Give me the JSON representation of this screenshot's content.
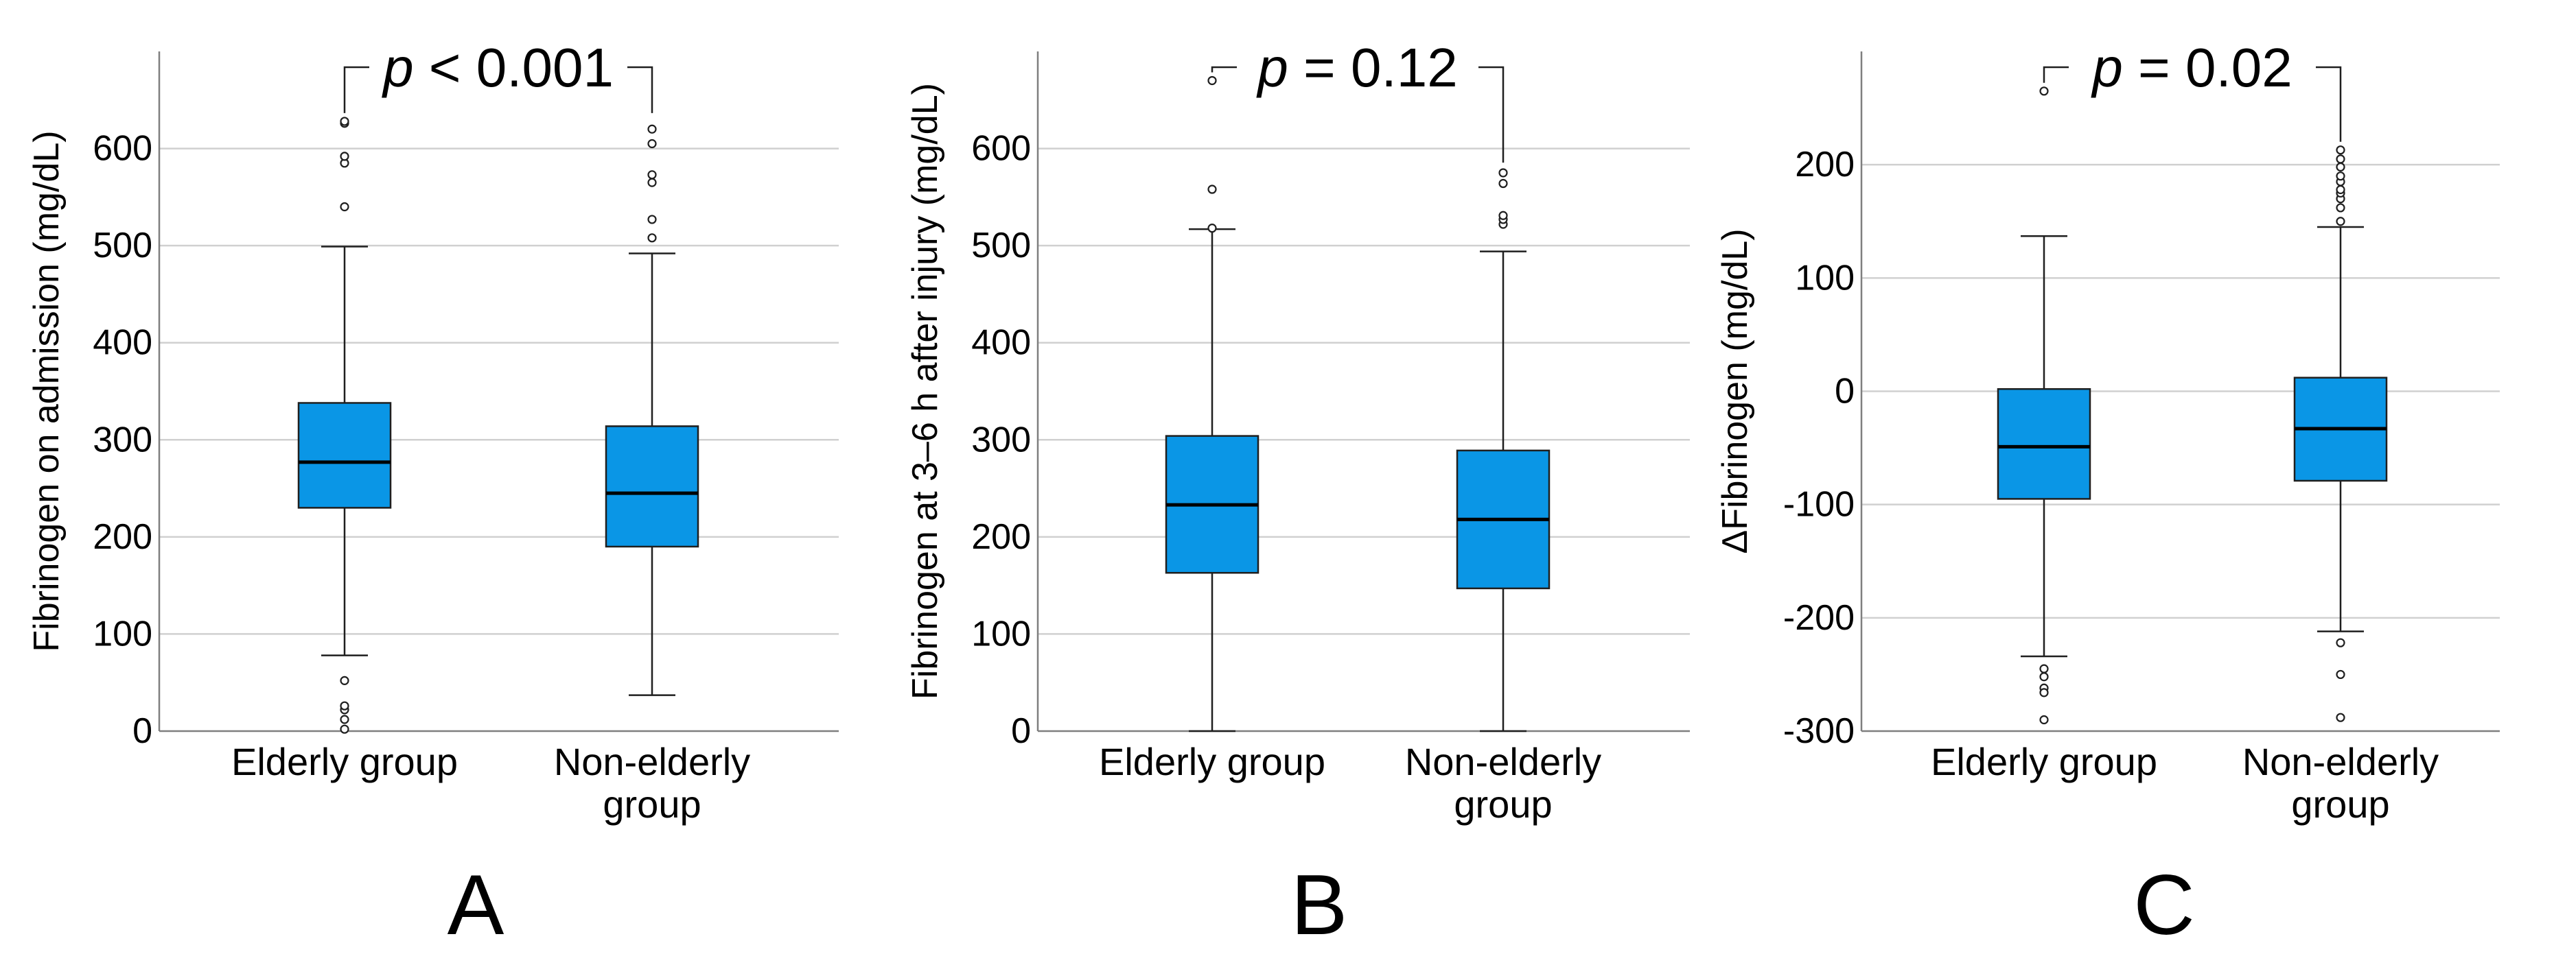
{
  "colors": {
    "box_fill": "#0a96e6",
    "grid": "#d0d0d0",
    "axis": "#7f7f7f",
    "text": "#000000"
  },
  "chart_data": [
    {
      "type": "box",
      "panel_label": "A",
      "ylabel": "Fibrinogen on admission (mg/dL)",
      "xlabel": "",
      "categories": [
        "Elderly group",
        "Non-elderly group"
      ],
      "category_display": [
        [
          "Elderly group"
        ],
        [
          "Non-elderly",
          "group"
        ]
      ],
      "ylim": [
        0,
        700
      ],
      "yticks": [
        0,
        100,
        200,
        300,
        400,
        500,
        600
      ],
      "ytick_labels": [
        "0",
        "100",
        "200",
        "300",
        "400",
        "500",
        "600"
      ],
      "grid": true,
      "p_value": {
        "italic": "p",
        "rest": " < 0.001"
      },
      "bracket_from": [
        628,
        628
      ],
      "boxes": [
        {
          "name": "Elderly group",
          "whisker_low": 78,
          "q1": 230,
          "median": 277,
          "q3": 338,
          "whisker_high": 499,
          "outliers": [
            2,
            12,
            22,
            26,
            52,
            540,
            585,
            592,
            626,
            628
          ]
        },
        {
          "name": "Non-elderly group",
          "whisker_low": 37,
          "q1": 190,
          "median": 245,
          "q3": 314,
          "whisker_high": 492,
          "outliers": [
            508,
            527,
            565,
            573,
            605,
            620
          ]
        }
      ]
    },
    {
      "type": "box",
      "panel_label": "B",
      "ylabel": "Fibrinogen at 3–6 h after injury (mg/dL)",
      "xlabel": "",
      "categories": [
        "Elderly group",
        "Non-elderly group"
      ],
      "category_display": [
        [
          "Elderly group"
        ],
        [
          "Non-elderly",
          "group"
        ]
      ],
      "ylim": [
        0,
        700
      ],
      "yticks": [
        0,
        100,
        200,
        300,
        400,
        500,
        600
      ],
      "ytick_labels": [
        "0",
        "100",
        "200",
        "300",
        "400",
        "500",
        "600"
      ],
      "grid": true,
      "p_value": {
        "italic": "p",
        "rest": " = 0.12"
      },
      "bracket_from": [
        670,
        577
      ],
      "boxes": [
        {
          "name": "Elderly group",
          "whisker_low": 0,
          "q1": 163,
          "median": 233,
          "q3": 304,
          "whisker_high": 517,
          "outliers": [
            518,
            558,
            670
          ]
        },
        {
          "name": "Non-elderly group",
          "whisker_low": 0,
          "q1": 147,
          "median": 218,
          "q3": 289,
          "whisker_high": 494,
          "outliers": [
            522,
            527,
            531,
            564,
            575
          ]
        }
      ]
    },
    {
      "type": "box",
      "panel_label": "C",
      "ylabel": "ΔFibrinogen (mg/dL)",
      "xlabel": "",
      "categories": [
        "Elderly group",
        "Non-elderly group"
      ],
      "category_display": [
        [
          "Elderly group"
        ],
        [
          "Non-elderly",
          "group"
        ]
      ],
      "ylim": [
        -300,
        300
      ],
      "yticks": [
        -300,
        -200,
        -100,
        0,
        100,
        200
      ],
      "ytick_labels": [
        "-300",
        "-200",
        "-100",
        "0",
        "100",
        "200"
      ],
      "grid": true,
      "p_value": {
        "italic": "p",
        "rest": " = 0.02"
      },
      "bracket_from": [
        265,
        213
      ],
      "boxes": [
        {
          "name": "Elderly group",
          "whisker_low": -234,
          "q1": -95,
          "median": -49,
          "q3": 2,
          "whisker_high": 137,
          "outliers": [
            -245,
            -252,
            -262,
            -266,
            -290,
            265
          ]
        },
        {
          "name": "Non-elderly group",
          "whisker_low": -212,
          "q1": -79,
          "median": -33,
          "q3": 12,
          "whisker_high": 145,
          "outliers": [
            -222,
            -250,
            -288,
            150,
            162,
            170,
            175,
            178,
            185,
            190,
            198,
            205,
            213
          ]
        }
      ]
    }
  ]
}
